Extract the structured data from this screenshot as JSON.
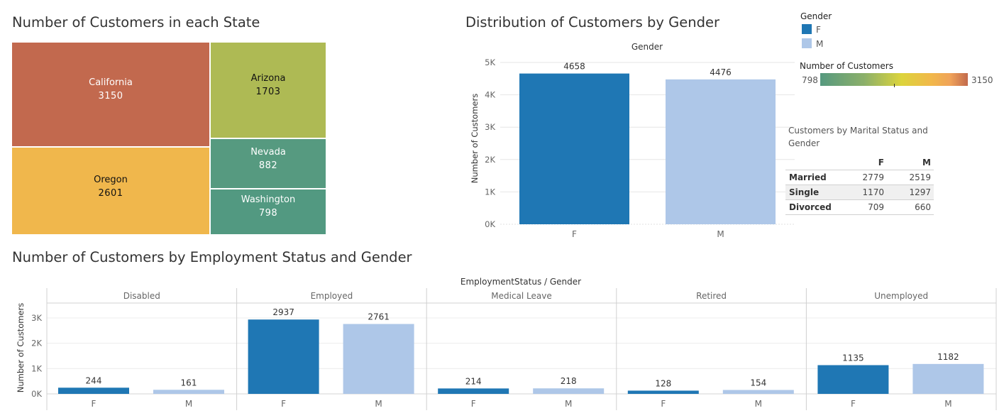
{
  "treemap": {
    "title": "Number of Customers in each State",
    "states": [
      {
        "name": "California",
        "value": "3150",
        "color": "#c2694e"
      },
      {
        "name": "Oregon",
        "value": "2601",
        "color": "#f0b74c"
      },
      {
        "name": "Arizona",
        "value": "1703",
        "color": "#aeba54"
      },
      {
        "name": "Nevada",
        "value": "882",
        "color": "#569a80"
      },
      {
        "name": "Washington",
        "value": "798",
        "color": "#529981"
      }
    ]
  },
  "legends": {
    "gender_title": "Gender",
    "gender_items": [
      {
        "label": "F",
        "color": "#1f77b4"
      },
      {
        "label": "M",
        "color": "#aec7e8"
      }
    ],
    "customers_title": "Number of Customers",
    "customers_min": "798",
    "customers_max": "3150"
  },
  "marital": {
    "title": "Customers by Marital Status and Gender",
    "columns": [
      "F",
      "M"
    ],
    "rows": [
      {
        "label": "Married",
        "f": "2779",
        "m": "2519"
      },
      {
        "label": "Single",
        "f": "1170",
        "m": "1297"
      },
      {
        "label": "Divorced",
        "f": "709",
        "m": "660"
      }
    ]
  },
  "chart_data": [
    {
      "type": "bar",
      "title": "Distribution of Customers by Gender",
      "header": "Gender",
      "categories": [
        "F",
        "M"
      ],
      "values": [
        4658,
        4476
      ],
      "ylabel": "Number of Customers",
      "yticks": [
        "0K",
        "1K",
        "2K",
        "3K",
        "4K",
        "5K"
      ],
      "ylim": [
        0,
        5000
      ],
      "colors": [
        "#1f77b4",
        "#aec7e8"
      ]
    },
    {
      "type": "bar",
      "title": "Number of Customers by Employment Status and Gender",
      "header": "EmploymentStatus / Gender",
      "ylabel": "Number of Customers",
      "yticks": [
        "0K",
        "1K",
        "2K",
        "3K"
      ],
      "ylim": [
        0,
        3000
      ],
      "groups": [
        {
          "name": "Disabled",
          "categories": [
            "F",
            "M"
          ],
          "values": [
            244,
            161
          ]
        },
        {
          "name": "Employed",
          "categories": [
            "F",
            "M"
          ],
          "values": [
            2937,
            2761
          ]
        },
        {
          "name": "Medical Leave",
          "categories": [
            "F",
            "M"
          ],
          "values": [
            214,
            218
          ]
        },
        {
          "name": "Retired",
          "categories": [
            "F",
            "M"
          ],
          "values": [
            128,
            154
          ]
        },
        {
          "name": "Unemployed",
          "categories": [
            "F",
            "M"
          ],
          "values": [
            1135,
            1182
          ]
        }
      ],
      "colors": [
        "#1f77b4",
        "#aec7e8"
      ]
    }
  ]
}
